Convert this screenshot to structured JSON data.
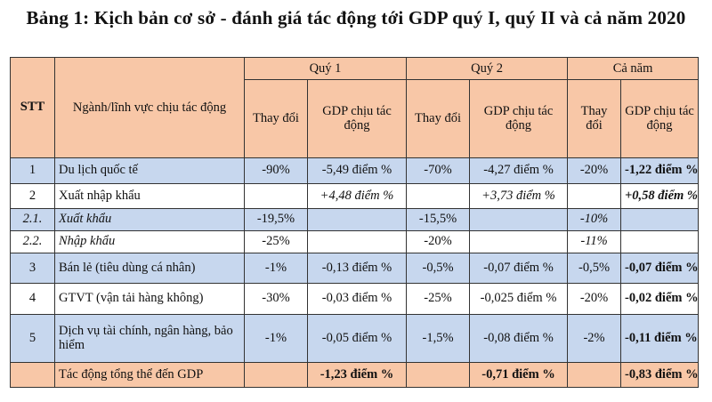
{
  "title": "Bảng 1: Kịch bản cơ sở - đánh giá tác động tới GDP quý I, quý II và cả năm 2020",
  "headers": {
    "stt": "STT",
    "sector": "Ngành/lĩnh vực chịu tác động",
    "q1": "Quý 1",
    "q2": "Quý 2",
    "year": "Cả năm",
    "change": "Thay đổi",
    "gdp": "GDP chịu tác động"
  },
  "rows": [
    {
      "stt": "1",
      "name": "Du lịch quốc tế",
      "q1c": "-90%",
      "q1g": "-5,49 điểm %",
      "q2c": "-70%",
      "q2g": "-4,27 điểm %",
      "yc": "-20%",
      "yg": "-1,22 điểm %"
    },
    {
      "stt": "2",
      "name": "Xuất nhập khẩu",
      "q1c": "",
      "q1g": "+4,48 điểm %",
      "q2c": "",
      "q2g": "+3,73 điểm %",
      "yc": "",
      "yg": "+0,58 điểm %"
    },
    {
      "stt": "2.1.",
      "name": "Xuất khẩu",
      "q1c": "-19,5%",
      "q1g": "",
      "q2c": "-15,5%",
      "q2g": "",
      "yc": "-10%",
      "yg": ""
    },
    {
      "stt": "2.2.",
      "name": "Nhập khẩu",
      "q1c": "-25%",
      "q1g": "",
      "q2c": "-20%",
      "q2g": "",
      "yc": "-11%",
      "yg": ""
    },
    {
      "stt": "3",
      "name": "Bán lẻ (tiêu dùng cá nhân)",
      "q1c": "-1%",
      "q1g": "-0,13 điểm %",
      "q2c": "-0,5%",
      "q2g": "-0,07 điểm %",
      "yc": "-0,5%",
      "yg": "-0,07 điểm %"
    },
    {
      "stt": "4",
      "name": "GTVT (vận tải hàng không)",
      "q1c": "-30%",
      "q1g": "-0,03 điểm %",
      "q2c": "-25%",
      "q2g": "-0,025 điểm %",
      "yc": "-20%",
      "yg": "-0,02 điểm %"
    },
    {
      "stt": "5",
      "name": "Dịch vụ tài chính, ngân hàng, bảo hiểm",
      "q1c": "-1%",
      "q1g": "-0,05 điểm %",
      "q2c": "-1,5%",
      "q2g": "-0,08 điểm %",
      "yc": "-2%",
      "yg": "-0,11 điểm %"
    }
  ],
  "total": {
    "label": "Tác động tổng thể đến GDP",
    "q1g": "-1,23 điểm %",
    "q2g": "-0,71 điểm %",
    "yg": "-0,83 điểm %"
  }
}
